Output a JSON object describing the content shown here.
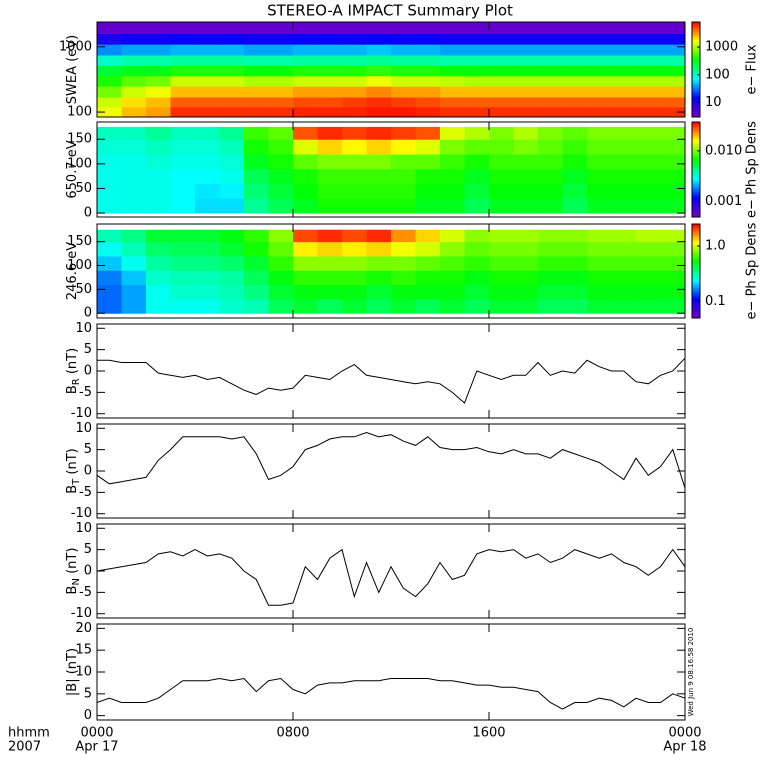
{
  "chart_data": [
    {
      "type": "heatmap",
      "title": "STEREO-A IMPACT Summary Plot",
      "ylabel": "SWEA (eV)",
      "ylog": true,
      "ylim": [
        84,
        2400
      ],
      "yticks": [
        100,
        1000
      ],
      "xlim": [
        0,
        24
      ],
      "x_bins": [
        0,
        1,
        2,
        3,
        4,
        5,
        6,
        7,
        8,
        9,
        10,
        11,
        12,
        13,
        14,
        15,
        16,
        17,
        18,
        19,
        20,
        21,
        22,
        23,
        24
      ],
      "y_bins": [
        84,
        120,
        170,
        250,
        360,
        520,
        750,
        1100,
        1600,
        2400
      ],
      "values": [
        [
          1500,
          2500,
          3000,
          6000,
          6000,
          6000,
          6000,
          6000,
          6500,
          6500,
          6500,
          7000,
          7000,
          6500,
          6000,
          6000,
          6000,
          6000,
          6000,
          6000,
          6000,
          6000,
          6000,
          6000
        ],
        [
          1200,
          2000,
          2500,
          4500,
          4500,
          4500,
          4500,
          4500,
          5000,
          5000,
          5500,
          6000,
          5500,
          5000,
          4500,
          4500,
          4500,
          4500,
          4500,
          4500,
          4500,
          4500,
          4500,
          4500
        ],
        [
          700,
          1200,
          1500,
          2500,
          2500,
          2500,
          2500,
          2500,
          3000,
          3000,
          3000,
          3500,
          3000,
          3000,
          2500,
          2500,
          2500,
          2500,
          2500,
          2500,
          2500,
          2500,
          2500,
          2500
        ],
        [
          400,
          600,
          700,
          1200,
          1200,
          1200,
          1000,
          1000,
          1200,
          1200,
          1200,
          1500,
          1200,
          1200,
          1100,
          1000,
          1000,
          1000,
          1000,
          1000,
          1000,
          1000,
          1000,
          1000
        ],
        [
          250,
          300,
          300,
          400,
          400,
          400,
          350,
          350,
          400,
          400,
          400,
          450,
          400,
          400,
          350,
          350,
          350,
          350,
          350,
          350,
          350,
          350,
          350,
          350
        ],
        [
          100,
          120,
          120,
          130,
          130,
          130,
          120,
          120,
          130,
          130,
          130,
          140,
          130,
          130,
          120,
          120,
          120,
          120,
          120,
          120,
          120,
          120,
          120,
          120
        ],
        [
          35,
          40,
          40,
          45,
          45,
          45,
          40,
          40,
          45,
          45,
          45,
          50,
          45,
          45,
          40,
          40,
          40,
          40,
          40,
          40,
          40,
          40,
          40,
          40
        ],
        [
          10,
          12,
          12,
          13,
          13,
          13,
          12,
          12,
          13,
          13,
          13,
          14,
          13,
          13,
          12,
          12,
          12,
          12,
          12,
          12,
          12,
          12,
          12,
          12
        ],
        [
          4,
          4,
          4,
          4,
          4,
          4,
          4,
          4,
          4,
          4,
          4,
          4,
          4,
          4,
          4,
          4,
          4,
          4,
          4,
          4,
          4,
          4,
          4,
          4
        ]
      ],
      "colorbar_label": "e− Flux",
      "clog": true,
      "clim": [
        3,
        8000
      ],
      "cticks": [
        10,
        100,
        1000
      ],
      "colormap": [
        "#7800c8",
        "#0000ff",
        "#00ffff",
        "#00ff00",
        "#ffff00",
        "#ff0000"
      ]
    },
    {
      "type": "heatmap",
      "ylabel": "650.7 eV",
      "ylim": [
        -8,
        185
      ],
      "yticks": [
        0,
        50,
        100,
        150
      ],
      "xlim": [
        0,
        24
      ],
      "x_bins": [
        0,
        1,
        2,
        3,
        4,
        5,
        6,
        7,
        8,
        9,
        10,
        11,
        12,
        13,
        14,
        15,
        16,
        17,
        18,
        19,
        20,
        21,
        22,
        23,
        24
      ],
      "y_bins": [
        0,
        30,
        60,
        90,
        120,
        150,
        175
      ],
      "values": [
        [
          0.003,
          0.003,
          0.003,
          0.0028,
          0.0025,
          0.0025,
          0.004,
          0.005,
          0.006,
          0.007,
          0.007,
          0.007,
          0.007,
          0.006,
          0.006,
          0.005,
          0.006,
          0.006,
          0.006,
          0.005,
          0.006,
          0.006,
          0.006,
          0.006
        ],
        [
          0.003,
          0.003,
          0.003,
          0.0028,
          0.0026,
          0.0027,
          0.0045,
          0.0055,
          0.0065,
          0.0075,
          0.0075,
          0.0075,
          0.0075,
          0.0065,
          0.0065,
          0.0055,
          0.0065,
          0.0065,
          0.0065,
          0.0055,
          0.0065,
          0.0065,
          0.0065,
          0.0065
        ],
        [
          0.003,
          0.003,
          0.003,
          0.0028,
          0.0028,
          0.003,
          0.005,
          0.006,
          0.007,
          0.008,
          0.008,
          0.008,
          0.008,
          0.007,
          0.007,
          0.006,
          0.007,
          0.007,
          0.007,
          0.006,
          0.007,
          0.007,
          0.007,
          0.007
        ],
        [
          0.003,
          0.003,
          0.0032,
          0.003,
          0.003,
          0.0032,
          0.006,
          0.007,
          0.009,
          0.01,
          0.01,
          0.01,
          0.009,
          0.009,
          0.008,
          0.007,
          0.008,
          0.008,
          0.008,
          0.007,
          0.008,
          0.008,
          0.008,
          0.008
        ],
        [
          0.0032,
          0.0032,
          0.0035,
          0.0032,
          0.0032,
          0.0035,
          0.007,
          0.008,
          0.014,
          0.018,
          0.016,
          0.018,
          0.016,
          0.014,
          0.01,
          0.009,
          0.009,
          0.01,
          0.009,
          0.008,
          0.009,
          0.009,
          0.009,
          0.009
        ],
        [
          0.0035,
          0.0035,
          0.004,
          0.0035,
          0.0035,
          0.004,
          0.008,
          0.009,
          0.028,
          0.032,
          0.03,
          0.032,
          0.03,
          0.028,
          0.014,
          0.012,
          0.01,
          0.012,
          0.01,
          0.009,
          0.01,
          0.01,
          0.01,
          0.01
        ]
      ],
      "colorbar_label": "e− Ph Sp Dens",
      "clog": true,
      "clim": [
        0.0005,
        0.037
      ],
      "cticks": [
        0.001,
        {
          "value": 0.01,
          "label": "0.010"
        }
      ],
      "colormap": [
        "#7800c8",
        "#0000ff",
        "#00ffff",
        "#00ff00",
        "#ffff00",
        "#ff0000"
      ]
    },
    {
      "type": "heatmap",
      "ylabel": "246.6 eV",
      "ylim": [
        -10,
        187
      ],
      "yticks": [
        0,
        50,
        100,
        150
      ],
      "xlim": [
        0,
        24
      ],
      "x_bins": [
        0,
        1,
        2,
        3,
        4,
        5,
        6,
        7,
        8,
        9,
        10,
        11,
        12,
        13,
        14,
        15,
        16,
        17,
        18,
        19,
        20,
        21,
        22,
        23,
        24
      ],
      "y_bins": [
        0,
        30,
        60,
        90,
        120,
        150,
        175
      ],
      "values": [
        [
          0.15,
          0.18,
          0.25,
          0.25,
          0.25,
          0.28,
          0.3,
          0.4,
          0.45,
          0.4,
          0.45,
          0.4,
          0.45,
          0.4,
          0.45,
          0.4,
          0.45,
          0.45,
          0.4,
          0.4,
          0.45,
          0.45,
          0.45,
          0.45
        ],
        [
          0.15,
          0.18,
          0.25,
          0.28,
          0.28,
          0.3,
          0.35,
          0.45,
          0.5,
          0.5,
          0.5,
          0.45,
          0.5,
          0.5,
          0.5,
          0.45,
          0.5,
          0.5,
          0.45,
          0.45,
          0.5,
          0.5,
          0.5,
          0.5
        ],
        [
          0.16,
          0.2,
          0.28,
          0.3,
          0.3,
          0.32,
          0.4,
          0.5,
          0.6,
          0.6,
          0.6,
          0.55,
          0.6,
          0.55,
          0.55,
          0.5,
          0.55,
          0.55,
          0.5,
          0.5,
          0.55,
          0.55,
          0.55,
          0.55
        ],
        [
          0.2,
          0.25,
          0.32,
          0.35,
          0.35,
          0.38,
          0.45,
          0.6,
          0.8,
          0.8,
          0.8,
          0.75,
          0.75,
          0.7,
          0.65,
          0.6,
          0.65,
          0.65,
          0.6,
          0.6,
          0.65,
          0.65,
          0.65,
          0.65
        ],
        [
          0.25,
          0.3,
          0.38,
          0.4,
          0.4,
          0.45,
          0.55,
          0.7,
          1.2,
          1.3,
          1.2,
          1.3,
          1.1,
          1.0,
          0.8,
          0.7,
          0.75,
          0.75,
          0.7,
          0.7,
          0.75,
          0.75,
          0.75,
          0.75
        ],
        [
          0.3,
          0.35,
          0.45,
          0.45,
          0.45,
          0.5,
          0.6,
          0.8,
          2.0,
          2.2,
          2.0,
          2.2,
          1.6,
          1.3,
          1.0,
          0.8,
          0.85,
          0.85,
          0.8,
          0.8,
          0.85,
          0.85,
          0.9,
          0.9
        ]
      ],
      "colorbar_label": "e− Ph Sp Dens",
      "clog": true,
      "clim": [
        0.05,
        2.5
      ],
      "cticks": [
        0.1,
        {
          "value": 1,
          "label": "1.0"
        }
      ],
      "colormap": [
        "#7800c8",
        "#0000ff",
        "#00ffff",
        "#00ff00",
        "#ffff00",
        "#ff0000"
      ]
    },
    {
      "type": "line",
      "ylabel": "B",
      "ylabel_sub": "R",
      "ylabel_unit": "(nT)",
      "ylim": [
        -11,
        11
      ],
      "yticks": [
        -10,
        -5,
        0,
        5,
        10
      ],
      "xlim": [
        0,
        24
      ],
      "color": "#000000",
      "x": [
        0,
        0.5,
        1,
        1.5,
        2,
        2.5,
        3,
        3.5,
        4,
        4.5,
        5,
        5.5,
        6,
        6.5,
        7,
        7.5,
        8,
        8.5,
        9,
        9.5,
        10,
        10.5,
        11,
        11.5,
        12,
        12.5,
        13,
        13.5,
        14,
        14.5,
        15,
        15.5,
        16,
        16.5,
        17,
        17.5,
        18,
        18.5,
        19,
        19.5,
        20,
        20.5,
        21,
        21.5,
        22,
        22.5,
        23,
        23.5,
        24
      ],
      "values": [
        2.5,
        2.5,
        2,
        2,
        2,
        -0.5,
        -1,
        -1.5,
        -1,
        -2,
        -1.5,
        -3,
        -4.5,
        -5.5,
        -4,
        -4.5,
        -4,
        -1,
        -1.5,
        -2,
        0,
        1.5,
        -1,
        -1.5,
        -2,
        -2.5,
        -3,
        -2.5,
        -3,
        -5,
        -7.5,
        0,
        -1,
        -2,
        -1,
        -1,
        2,
        -1,
        0,
        -0.5,
        2.5,
        1,
        0,
        0,
        -2.5,
        -3,
        -1,
        0,
        3
      ]
    },
    {
      "type": "line",
      "ylabel": "B",
      "ylabel_sub": "T",
      "ylabel_unit": "(nT)",
      "ylim": [
        -11,
        11
      ],
      "yticks": [
        -10,
        -5,
        0,
        5,
        10
      ],
      "xlim": [
        0,
        24
      ],
      "color": "#000000",
      "x": [
        0,
        0.5,
        1,
        1.5,
        2,
        2.5,
        3,
        3.5,
        4,
        4.5,
        5,
        5.5,
        6,
        6.5,
        7,
        7.5,
        8,
        8.5,
        9,
        9.5,
        10,
        10.5,
        11,
        11.5,
        12,
        12.5,
        13,
        13.5,
        14,
        14.5,
        15,
        15.5,
        16,
        16.5,
        17,
        17.5,
        18,
        18.5,
        19,
        19.5,
        20,
        20.5,
        21,
        21.5,
        22,
        22.5,
        23,
        23.5,
        24
      ],
      "values": [
        -1,
        -3,
        -2.5,
        -2,
        -1.5,
        2.5,
        5,
        8,
        8,
        8,
        8,
        7.5,
        8,
        4,
        -2,
        -1,
        1,
        5,
        6,
        7.5,
        8,
        8,
        9,
        8,
        8.5,
        7,
        6,
        8,
        5.5,
        5,
        5,
        5.5,
        4.5,
        4,
        5,
        4,
        4,
        3,
        5,
        4,
        3,
        2,
        0,
        -2,
        3,
        -1,
        1,
        5,
        -4
      ]
    },
    {
      "type": "line",
      "ylabel": "B",
      "ylabel_sub": "N",
      "ylabel_unit": "(nT)",
      "ylim": [
        -11,
        11
      ],
      "yticks": [
        -10,
        -5,
        0,
        5,
        10
      ],
      "xlim": [
        0,
        24
      ],
      "color": "#000000",
      "x": [
        0,
        0.5,
        1,
        1.5,
        2,
        2.5,
        3,
        3.5,
        4,
        4.5,
        5,
        5.5,
        6,
        6.5,
        7,
        7.5,
        8,
        8.5,
        9,
        9.5,
        10,
        10.5,
        11,
        11.5,
        12,
        12.5,
        13,
        13.5,
        14,
        14.5,
        15,
        15.5,
        16,
        16.5,
        17,
        17.5,
        18,
        18.5,
        19,
        19.5,
        20,
        20.5,
        21,
        21.5,
        22,
        22.5,
        23,
        23.5,
        24
      ],
      "values": [
        0,
        0.5,
        1,
        1.5,
        2,
        4,
        4.5,
        3.5,
        5,
        3.5,
        4,
        3,
        0,
        -2,
        -8,
        -8,
        -7.5,
        1,
        -2,
        3,
        5,
        -6,
        2,
        -5,
        1,
        -4,
        -6,
        -3,
        2,
        -2,
        -1,
        4,
        5,
        4.5,
        5,
        3,
        4,
        2,
        3,
        5,
        4,
        3,
        4,
        2,
        1,
        -1,
        1,
        5,
        1
      ]
    },
    {
      "type": "line",
      "ylabel": "|B| (nT)",
      "ylim": [
        -1,
        21
      ],
      "yticks": [
        0,
        5,
        10,
        15,
        20
      ],
      "xlim": [
        0,
        24
      ],
      "color": "#000000",
      "x": [
        0,
        0.5,
        1,
        1.5,
        2,
        2.5,
        3,
        3.5,
        4,
        4.5,
        5,
        5.5,
        6,
        6.5,
        7,
        7.5,
        8,
        8.5,
        9,
        9.5,
        10,
        10.5,
        11,
        11.5,
        12,
        12.5,
        13,
        13.5,
        14,
        14.5,
        15,
        15.5,
        16,
        16.5,
        17,
        17.5,
        18,
        18.5,
        19,
        19.5,
        20,
        20.5,
        21,
        21.5,
        22,
        22.5,
        23,
        23.5,
        24
      ],
      "values": [
        3,
        4,
        3,
        3,
        3,
        4,
        6,
        8,
        8,
        8,
        8.5,
        8,
        8.5,
        5.5,
        8,
        8.5,
        6,
        5,
        7,
        7.5,
        7.5,
        8,
        8,
        8,
        8.5,
        8.5,
        8.5,
        8.5,
        8,
        8,
        7.5,
        7,
        7,
        6.5,
        6.5,
        6,
        5.5,
        3,
        1.5,
        3,
        3,
        4,
        3.5,
        2,
        4,
        3,
        3,
        5,
        4
      ],
      "xticks": [
        {
          "value": 0,
          "label": "0000"
        },
        {
          "value": 8,
          "label": "0800"
        },
        {
          "value": 16,
          "label": "1600"
        },
        {
          "value": 24,
          "label": "0000"
        }
      ],
      "xtick_dates": [
        {
          "value": 0,
          "label": "Apr 17"
        },
        {
          "value": 24,
          "label": "Apr 18"
        }
      ],
      "xlabel": "hhmm",
      "year": "2007",
      "timestamp": "Wed Jun  9 08:16:58 2010"
    }
  ]
}
